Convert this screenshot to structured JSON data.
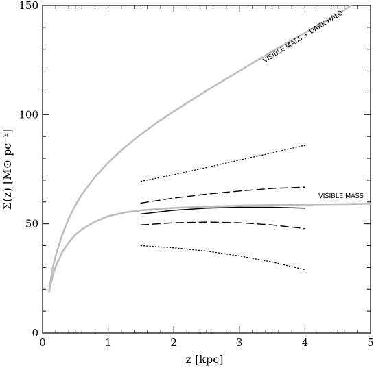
{
  "chart_data": {
    "type": "line",
    "title": "",
    "xlabel": "z [kpc]",
    "ylabel": "Σ(z) [M⊙ pc⁻²]",
    "xlim": [
      0,
      5
    ],
    "ylim": [
      0,
      150
    ],
    "x_ticks": [
      0,
      1,
      2,
      3,
      4,
      5
    ],
    "y_ticks": [
      0,
      50,
      100,
      150
    ],
    "grid": false,
    "legend": "none",
    "colors": {
      "model": "#bdbdbd",
      "data": "#000000"
    },
    "series": [
      {
        "style": "solid-gray",
        "label": "VISIBLE MASS + DARK HALO",
        "x": [
          0.1,
          0.15,
          0.2,
          0.3,
          0.4,
          0.5,
          0.6,
          0.8,
          1.0,
          1.25,
          1.5,
          1.75,
          2.0,
          2.5,
          3.0,
          3.5,
          4.0,
          4.5,
          4.7
        ],
        "y": [
          19.5,
          29,
          35.5,
          45,
          52.5,
          58.5,
          63.5,
          71.5,
          78,
          85,
          91,
          96.5,
          101.5,
          111,
          120,
          129,
          137.5,
          146,
          150
        ]
      },
      {
        "style": "solid-gray",
        "label": "VISIBLE MASS",
        "x": [
          0.1,
          0.15,
          0.2,
          0.3,
          0.4,
          0.5,
          0.6,
          0.8,
          1.0,
          1.25,
          1.5,
          2.0,
          2.5,
          3.0,
          3.5,
          4.0,
          4.5,
          5.0
        ],
        "y": [
          19,
          25.5,
          30.5,
          37,
          41.5,
          45,
          47.5,
          51,
          53.5,
          55.2,
          56.2,
          57.3,
          57.9,
          58.3,
          58.6,
          58.8,
          59,
          59.2
        ]
      },
      {
        "style": "solid-black",
        "x": [
          1.5,
          2.0,
          2.5,
          3.0,
          3.5,
          4.0
        ],
        "y": [
          54.5,
          56.2,
          57.2,
          57.6,
          57.6,
          57.2
        ]
      },
      {
        "style": "dashed-upper",
        "x": [
          1.5,
          2.0,
          2.5,
          3.0,
          3.5,
          4.0
        ],
        "y": [
          59.5,
          61.8,
          63.6,
          65,
          66.2,
          66.8
        ]
      },
      {
        "style": "dashed-lower",
        "x": [
          1.5,
          2.0,
          2.5,
          3.0,
          3.5,
          4.0
        ],
        "y": [
          49.5,
          50.5,
          50.8,
          50.5,
          49.5,
          47.8
        ]
      },
      {
        "style": "dotted-upper",
        "x": [
          1.5,
          2.0,
          2.5,
          3.0,
          3.5,
          4.0
        ],
        "y": [
          69.5,
          72.5,
          75.8,
          79.2,
          82.5,
          86
        ]
      },
      {
        "style": "dotted-lower",
        "x": [
          1.5,
          2.0,
          2.5,
          3.0,
          3.5,
          4.0
        ],
        "y": [
          40,
          39,
          37.5,
          35.3,
          32.5,
          29
        ]
      }
    ]
  }
}
